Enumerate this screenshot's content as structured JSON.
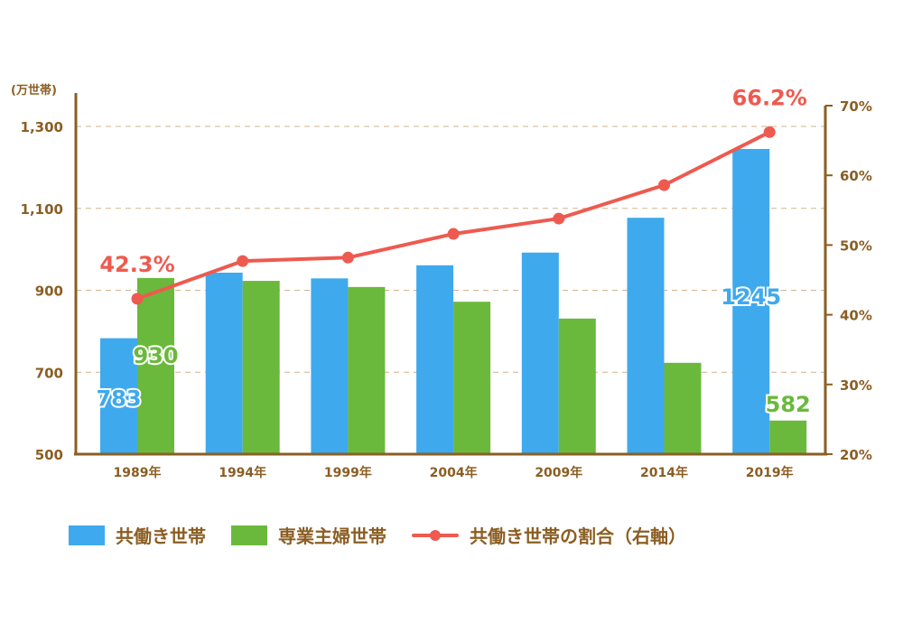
{
  "chart_data": {
    "type": "bar+line",
    "left_unit_label": "(万世帯)",
    "categories": [
      "1989年",
      "1994年",
      "1999年",
      "2004年",
      "2009年",
      "2014年",
      "2019年"
    ],
    "left_axis": {
      "ylim": [
        500,
        1300
      ],
      "ticks": [
        500,
        700,
        900,
        1100,
        1300
      ],
      "tick_labels": [
        "500",
        "700",
        "900",
        "1,100",
        "1,300"
      ]
    },
    "right_axis": {
      "ylim": [
        20,
        70
      ],
      "ticks": [
        20,
        30,
        40,
        50,
        60,
        70
      ],
      "tick_labels": [
        "20%",
        "30%",
        "40%",
        "50%",
        "60%",
        "70%"
      ]
    },
    "grid": "horizontal dashed",
    "series": [
      {
        "name": "共働き世帯",
        "type": "bar",
        "axis": "left",
        "color": "#3fa9ed",
        "values": [
          783,
          943,
          929,
          961,
          992,
          1077,
          1245
        ]
      },
      {
        "name": "専業主婦世帯",
        "type": "bar",
        "axis": "left",
        "color": "#6ab93c",
        "values": [
          930,
          923,
          908,
          872,
          831,
          723,
          582
        ]
      },
      {
        "name": "共働き世帯の割合（右軸）",
        "type": "line",
        "axis": "right",
        "color": "#ee5a4f",
        "values": [
          42.3,
          47.7,
          48.2,
          51.6,
          53.8,
          58.6,
          66.2
        ]
      }
    ],
    "annotations": [
      {
        "series": 0,
        "index": 0,
        "text": "783"
      },
      {
        "series": 1,
        "index": 0,
        "text": "930"
      },
      {
        "series": 0,
        "index": 6,
        "text": "1245"
      },
      {
        "series": 1,
        "index": 6,
        "text": "582"
      },
      {
        "series": 2,
        "index": 0,
        "text": "42.3%"
      },
      {
        "series": 2,
        "index": 6,
        "text": "66.2%"
      }
    ],
    "legend": "bottom",
    "axis_color": "#8b5e23"
  }
}
